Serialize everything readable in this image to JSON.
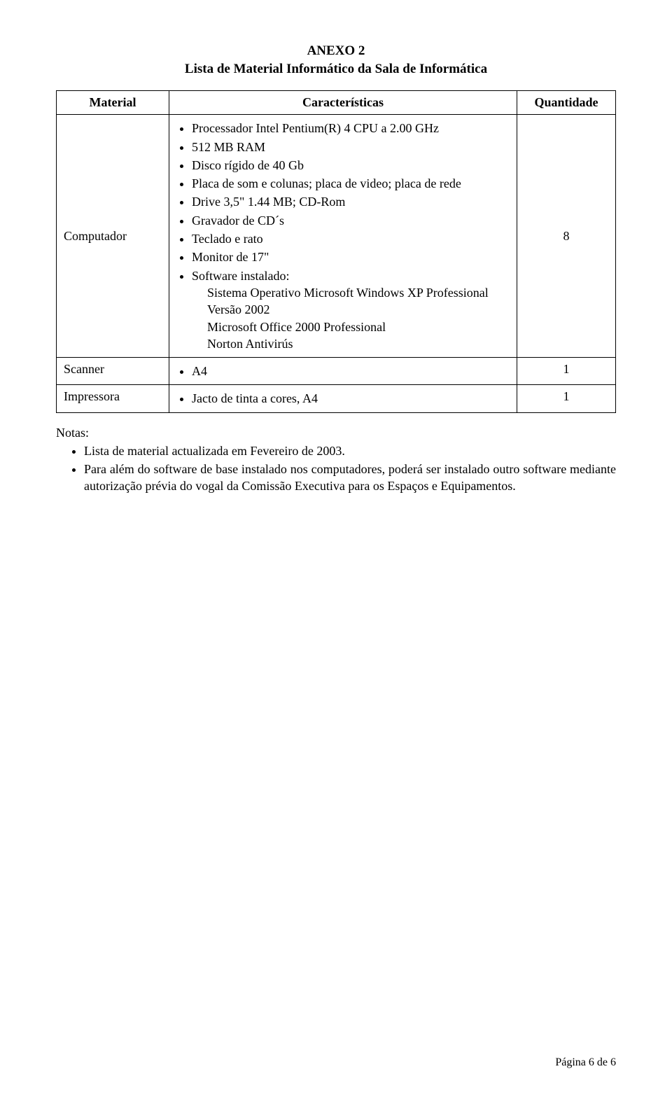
{
  "anexo_label": "ANEXO 2",
  "doc_title": "Lista de Material Informático da Sala de Informática",
  "table": {
    "headers": {
      "material": "Material",
      "caracteristicas": "Características",
      "quantidade": "Quantidade"
    },
    "rows": [
      {
        "label": "Computador",
        "qty": "8",
        "specs": [
          "Processador Intel Pentium(R) 4 CPU a 2.00 GHz",
          "512 MB RAM",
          "Disco rígido de 40 Gb",
          "Placa de som e colunas; placa de video; placa de rede",
          "Drive 3,5\" 1.44 MB; CD-Rom",
          "Gravador de CD´s",
          "Teclado e rato",
          "Monitor de 17\"",
          "Software instalado:"
        ],
        "software_sub": [
          "Sistema Operativo Microsoft Windows XP Professional Versão 2002",
          "Microsoft Office 2000 Professional",
          "Norton Antivirús"
        ]
      },
      {
        "label": "Scanner",
        "qty": "1",
        "specs": [
          "A4"
        ]
      },
      {
        "label": "Impressora",
        "qty": "1",
        "specs": [
          "Jacto de tinta a cores, A4"
        ]
      }
    ]
  },
  "notas": {
    "title": "Notas:",
    "items": [
      "Lista de material actualizada em Fevereiro de 2003.",
      "Para além do software de base instalado nos computadores, poderá ser instalado outro software mediante autorização prévia do vogal da Comissão Executiva para os Espaços e Equipamentos."
    ]
  },
  "footer": "Página 6 de 6"
}
